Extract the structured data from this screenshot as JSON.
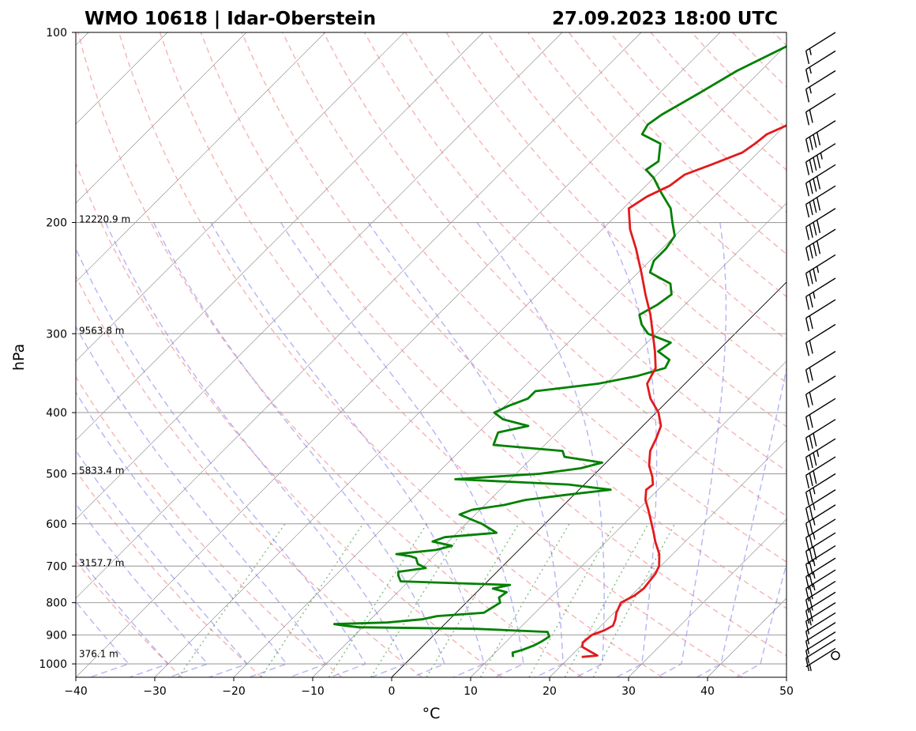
{
  "header": {
    "station": "WMO 10618 | Idar-Oberstein",
    "datetime": "27.09.2023 18:00 UTC"
  },
  "chart_data": {
    "type": "skew-t",
    "xlabel": "°C",
    "ylabel": "hPa",
    "xlim": [
      -40,
      50
    ],
    "ylim": [
      1050,
      100
    ],
    "log_y": true,
    "x_ticks": [
      -40,
      -30,
      -20,
      -10,
      0,
      10,
      20,
      30,
      40,
      50
    ],
    "x_tick_labels": [
      "−40",
      "−30",
      "−20",
      "−10",
      "0",
      "10",
      "20",
      "30",
      "40",
      "50"
    ],
    "p_ticks": [
      1000,
      900,
      800,
      700,
      600,
      500,
      400,
      300,
      200,
      100
    ],
    "p_tick_labels": [
      "1000",
      "900",
      "800",
      "700",
      "600",
      "500",
      "400",
      "300",
      "200",
      "100"
    ],
    "grid": true,
    "height_labels": [
      {
        "p": 975,
        "text": "376.1 m"
      },
      {
        "p": 700,
        "text": "3157.7 m"
      },
      {
        "p": 500,
        "text": "5833.4 m"
      },
      {
        "p": 300,
        "text": "9563.8 m"
      },
      {
        "p": 200,
        "text": "12220.9 m"
      }
    ],
    "temperature": {
      "color": "#e31a1c",
      "points": [
        [
          975,
          21.5
        ],
        [
          970,
          23.3
        ],
        [
          955,
          21.8
        ],
        [
          940,
          20.3
        ],
        [
          925,
          19.8
        ],
        [
          900,
          20.0
        ],
        [
          885,
          21.0
        ],
        [
          870,
          21.5
        ],
        [
          850,
          21.0
        ],
        [
          830,
          20.3
        ],
        [
          800,
          19.6
        ],
        [
          780,
          20.4
        ],
        [
          760,
          20.7
        ],
        [
          740,
          20.5
        ],
        [
          720,
          20.3
        ],
        [
          700,
          19.8
        ],
        [
          670,
          18.3
        ],
        [
          640,
          16.2
        ],
        [
          620,
          14.9
        ],
        [
          600,
          13.5
        ],
        [
          570,
          11.3
        ],
        [
          550,
          9.7
        ],
        [
          530,
          8.5
        ],
        [
          520,
          8.7
        ],
        [
          505,
          7.6
        ],
        [
          485,
          5.8
        ],
        [
          460,
          4.1
        ],
        [
          440,
          3.3
        ],
        [
          420,
          2.3
        ],
        [
          400,
          0.3
        ],
        [
          380,
          -2.5
        ],
        [
          360,
          -4.8
        ],
        [
          340,
          -5.7
        ],
        [
          320,
          -7.9
        ],
        [
          300,
          -10.4
        ],
        [
          280,
          -13.1
        ],
        [
          260,
          -16.3
        ],
        [
          240,
          -19.6
        ],
        [
          220,
          -23.3
        ],
        [
          205,
          -26.5
        ],
        [
          190,
          -29.3
        ],
        [
          182,
          -28.5
        ],
        [
          175,
          -27.0
        ],
        [
          168,
          -26.5
        ],
        [
          162,
          -24.4
        ],
        [
          155,
          -22.0
        ],
        [
          150,
          -21.5
        ],
        [
          145,
          -21.2
        ],
        [
          140,
          -19.7
        ],
        [
          135,
          -16.6
        ],
        [
          130,
          -15.4
        ],
        [
          124,
          -15.5
        ],
        [
          120,
          -13.0
        ],
        [
          115,
          -10.7
        ],
        [
          110,
          -9.7
        ],
        [
          105,
          -9.5
        ],
        [
          100,
          -8.8
        ]
      ]
    },
    "dewpoint": {
      "color": "#008000",
      "points": [
        [
          975,
          12.8
        ],
        [
          960,
          12.2
        ],
        [
          950,
          13.1
        ],
        [
          935,
          14.0
        ],
        [
          920,
          14.5
        ],
        [
          905,
          14.8
        ],
        [
          890,
          14.0
        ],
        [
          880,
          4.5
        ],
        [
          875,
          -10.5
        ],
        [
          870,
          -12.5
        ],
        [
          865,
          -14.0
        ],
        [
          860,
          -7.5
        ],
        [
          850,
          -3.5
        ],
        [
          840,
          -2.0
        ],
        [
          830,
          3.5
        ],
        [
          815,
          3.9
        ],
        [
          800,
          4.3
        ],
        [
          785,
          3.5
        ],
        [
          770,
          3.8
        ],
        [
          760,
          1.6
        ],
        [
          750,
          3.3
        ],
        [
          740,
          -11.0
        ],
        [
          725,
          -12.0
        ],
        [
          715,
          -12.5
        ],
        [
          705,
          -9.5
        ],
        [
          695,
          -11.0
        ],
        [
          680,
          -12.0
        ],
        [
          675,
          -13.0
        ],
        [
          670,
          -15.0
        ],
        [
          660,
          -10.5
        ],
        [
          650,
          -9.0
        ],
        [
          640,
          -12.0
        ],
        [
          630,
          -11.0
        ],
        [
          620,
          -5.0
        ],
        [
          610,
          -6.5
        ],
        [
          600,
          -8.0
        ],
        [
          590,
          -10.0
        ],
        [
          580,
          -12.0
        ],
        [
          570,
          -11.0
        ],
        [
          560,
          -7.5
        ],
        [
          550,
          -5.5
        ],
        [
          540,
          -1.0
        ],
        [
          530,
          4.0
        ],
        [
          520,
          -2.0
        ],
        [
          510,
          -17.0
        ],
        [
          500,
          -7.0
        ],
        [
          490,
          -2.5
        ],
        [
          480,
          -0.5
        ],
        [
          470,
          -6.0
        ],
        [
          460,
          -7.0
        ],
        [
          450,
          -16.5
        ],
        [
          440,
          -17.0
        ],
        [
          430,
          -17.5
        ],
        [
          420,
          -14.5
        ],
        [
          410,
          -18.5
        ],
        [
          400,
          -20.5
        ],
        [
          390,
          -19.5
        ],
        [
          380,
          -18.0
        ],
        [
          370,
          -18.0
        ],
        [
          360,
          -11.0
        ],
        [
          350,
          -7.0
        ],
        [
          340,
          -4.5
        ],
        [
          330,
          -5.0
        ],
        [
          320,
          -7.5
        ],
        [
          310,
          -7.0
        ],
        [
          300,
          -11.0
        ],
        [
          290,
          -13.0
        ],
        [
          280,
          -14.5
        ],
        [
          270,
          -13.5
        ],
        [
          260,
          -13.0
        ],
        [
          250,
          -14.5
        ],
        [
          240,
          -18.5
        ],
        [
          230,
          -19.5
        ],
        [
          220,
          -19.5
        ],
        [
          210,
          -20.0
        ],
        [
          200,
          -22.0
        ],
        [
          190,
          -24.0
        ],
        [
          180,
          -27.0
        ],
        [
          175,
          -28.5
        ],
        [
          170,
          -30.0
        ],
        [
          165,
          -32.0
        ],
        [
          160,
          -31.5
        ],
        [
          150,
          -33.5
        ],
        [
          145,
          -37.0
        ],
        [
          140,
          -37.5
        ],
        [
          135,
          -37.0
        ],
        [
          125,
          -35.0
        ],
        [
          115,
          -33.0
        ],
        [
          100,
          -28.0
        ]
      ]
    },
    "wind_barbs": [
      {
        "p": 970,
        "speed_kt": 0
      },
      {
        "p": 945,
        "speed_kt": 5
      },
      {
        "p": 915,
        "speed_kt": 10
      },
      {
        "p": 890,
        "speed_kt": 10
      },
      {
        "p": 860,
        "speed_kt": 10
      },
      {
        "p": 830,
        "speed_kt": 10
      },
      {
        "p": 800,
        "speed_kt": 15
      },
      {
        "p": 770,
        "speed_kt": 20
      },
      {
        "p": 740,
        "speed_kt": 20
      },
      {
        "p": 710,
        "speed_kt": 25
      },
      {
        "p": 680,
        "speed_kt": 25
      },
      {
        "p": 650,
        "speed_kt": 25
      },
      {
        "p": 620,
        "speed_kt": 30
      },
      {
        "p": 590,
        "speed_kt": 25
      },
      {
        "p": 560,
        "speed_kt": 25
      },
      {
        "p": 530,
        "speed_kt": 25
      },
      {
        "p": 500,
        "speed_kt": 25
      },
      {
        "p": 470,
        "speed_kt": 30
      },
      {
        "p": 440,
        "speed_kt": 35
      },
      {
        "p": 410,
        "speed_kt": 30
      },
      {
        "p": 380,
        "speed_kt": 20
      },
      {
        "p": 350,
        "speed_kt": 20
      },
      {
        "p": 320,
        "speed_kt": 20
      },
      {
        "p": 290,
        "speed_kt": 20
      },
      {
        "p": 265,
        "speed_kt": 20
      },
      {
        "p": 245,
        "speed_kt": 25
      },
      {
        "p": 225,
        "speed_kt": 35
      },
      {
        "p": 205,
        "speed_kt": 40
      },
      {
        "p": 190,
        "speed_kt": 40
      },
      {
        "p": 175,
        "speed_kt": 40
      },
      {
        "p": 162,
        "speed_kt": 40
      },
      {
        "p": 150,
        "speed_kt": 45
      },
      {
        "p": 138,
        "speed_kt": 40
      },
      {
        "p": 125,
        "speed_kt": 20
      },
      {
        "p": 115,
        "speed_kt": 15
      },
      {
        "p": 107,
        "speed_kt": 15
      },
      {
        "p": 100,
        "speed_kt": 15
      }
    ]
  }
}
